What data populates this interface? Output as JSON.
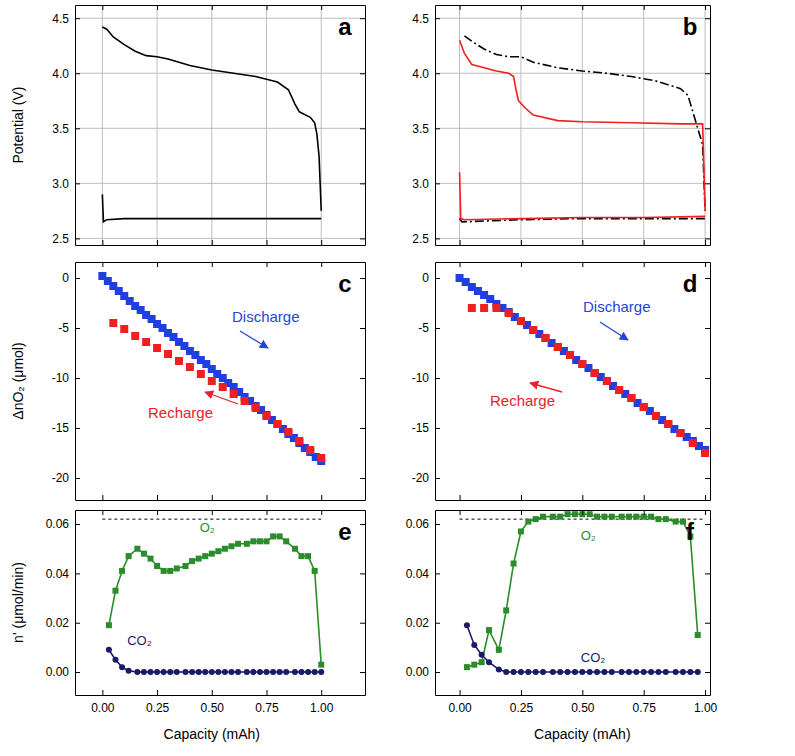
{
  "chart_data": [
    {
      "type": "line",
      "title": "a",
      "y_label": "Potential (V)",
      "xlim": [
        -0.125,
        1.2
      ],
      "ylim": [
        2.44,
        4.62
      ],
      "xticks": [
        0,
        0.25,
        0.5,
        0.75,
        1
      ],
      "yticks": [
        2.5,
        {
          "value": 3,
          "label": "3.0"
        },
        3.5,
        {
          "value": 4,
          "label": "4.0"
        },
        4.5
      ],
      "grid": true,
      "tick_labels": "y",
      "series": [
        {
          "color": "#000000",
          "line_style": "solid",
          "x": [
            0,
            0.02,
            0.05,
            0.1,
            0.15,
            0.2,
            0.25,
            0.3,
            0.4,
            0.5,
            0.6,
            0.7,
            0.8,
            0.85,
            0.88,
            0.9,
            0.93,
            0.95,
            0.97,
            0.98,
            0.99,
            1.0
          ],
          "values": [
            4.42,
            4.4,
            4.33,
            4.26,
            4.2,
            4.16,
            4.15,
            4.13,
            4.07,
            4.03,
            4.0,
            3.97,
            3.92,
            3.85,
            3.72,
            3.65,
            3.62,
            3.6,
            3.55,
            3.45,
            3.25,
            2.75
          ]
        },
        {
          "color": "#000000",
          "line_style": "solid",
          "x": [
            0,
            0.005,
            0.02,
            0.1,
            0.25,
            0.5,
            0.75,
            1.0
          ],
          "values": [
            2.9,
            2.65,
            2.67,
            2.68,
            2.68,
            2.68,
            2.68,
            2.68
          ]
        }
      ]
    },
    {
      "type": "line",
      "title": "b",
      "xlim": [
        -0.1,
        1.02
      ],
      "ylim": [
        2.44,
        4.62
      ],
      "xticks": [
        0,
        0.25,
        0.5,
        0.75,
        1
      ],
      "yticks": [
        2.5,
        {
          "value": 3,
          "label": "3.0"
        },
        3.5,
        {
          "value": 4,
          "label": "4.0"
        },
        4.5
      ],
      "grid": true,
      "tick_labels": "y",
      "series": [
        {
          "color": "#000000",
          "line_style": "dashdot",
          "x": [
            0.02,
            0.05,
            0.1,
            0.15,
            0.2,
            0.25,
            0.3,
            0.4,
            0.5,
            0.6,
            0.7,
            0.8,
            0.9,
            0.93,
            0.95,
            0.97,
            0.99,
            1.0
          ],
          "values": [
            4.34,
            4.29,
            4.22,
            4.17,
            4.15,
            4.15,
            4.1,
            4.05,
            4.02,
            4.0,
            3.97,
            3.93,
            3.86,
            3.8,
            3.65,
            3.5,
            3.35,
            2.75
          ]
        },
        {
          "color": "#000000",
          "line_style": "dashdot",
          "x": [
            0,
            0.01,
            0.25,
            0.5,
            0.75,
            1.0
          ],
          "values": [
            2.68,
            2.65,
            2.67,
            2.68,
            2.68,
            2.68
          ]
        },
        {
          "color": "#f02020",
          "line_style": "solid",
          "x": [
            0,
            0.02,
            0.05,
            0.1,
            0.15,
            0.2,
            0.22,
            0.23,
            0.24,
            0.27,
            0.3,
            0.4,
            0.5,
            0.7,
            0.9,
            0.99,
            1.0
          ],
          "values": [
            4.3,
            4.18,
            4.08,
            4.05,
            4.02,
            4.0,
            3.97,
            3.85,
            3.75,
            3.68,
            3.62,
            3.57,
            3.56,
            3.55,
            3.54,
            3.54,
            2.75
          ]
        },
        {
          "color": "#f02020",
          "line_style": "solid",
          "x": [
            0,
            0.005,
            0.02,
            0.25,
            0.5,
            0.75,
            1.0
          ],
          "values": [
            3.1,
            2.68,
            2.67,
            2.68,
            2.69,
            2.69,
            2.7
          ]
        }
      ]
    },
    {
      "type": "scatter",
      "title": "c",
      "y_label": "ΔnO₂ (μmol)",
      "xlim": [
        -0.125,
        1.2
      ],
      "ylim": [
        -22.2,
        1.6
      ],
      "xticks": [
        0,
        0.25,
        0.5,
        0.75,
        1
      ],
      "yticks": [
        0,
        -5,
        -10,
        -15,
        -20
      ],
      "grid": false,
      "tick_labels": "y",
      "series": [
        {
          "color": "#1f3fe0",
          "marker": "square",
          "line_style": "none",
          "x": [
            0,
            0.025,
            0.05,
            0.075,
            0.1,
            0.125,
            0.15,
            0.175,
            0.2,
            0.225,
            0.25,
            0.275,
            0.3,
            0.325,
            0.35,
            0.375,
            0.4,
            0.425,
            0.45,
            0.475,
            0.5,
            0.525,
            0.55,
            0.575,
            0.6,
            0.625,
            0.65,
            0.675,
            0.7,
            0.725,
            0.75,
            0.775,
            0.8,
            0.825,
            0.85,
            0.875,
            0.9,
            0.925,
            0.95,
            0.975,
            1
          ],
          "values": [
            0.2,
            -0.3,
            -0.8,
            -1.3,
            -1.8,
            -2.3,
            -2.8,
            -3.2,
            -3.7,
            -4.1,
            -4.6,
            -5.0,
            -5.5,
            -5.9,
            -6.4,
            -6.8,
            -7.3,
            -7.7,
            -8.2,
            -8.6,
            -9.1,
            -9.6,
            -10.0,
            -10.5,
            -10.9,
            -11.4,
            -11.9,
            -12.3,
            -12.8,
            -13.2,
            -13.7,
            -14.2,
            -14.6,
            -15.1,
            -15.6,
            -16.0,
            -16.5,
            -17.0,
            -17.4,
            -17.9,
            -18.3
          ]
        },
        {
          "color": "#f02020",
          "marker": "square",
          "line_style": "none",
          "x": [
            0.05,
            0.1,
            0.15,
            0.2,
            0.25,
            0.3,
            0.35,
            0.4,
            0.45,
            0.5,
            0.55,
            0.6,
            0.65,
            0.7,
            0.75,
            0.8,
            0.85,
            0.9,
            0.95,
            1.0
          ],
          "values": [
            -4.5,
            -5.1,
            -5.8,
            -6.4,
            -7.0,
            -7.6,
            -8.3,
            -8.9,
            -9.6,
            -10.3,
            -10.9,
            -11.6,
            -12.3,
            -13.0,
            -13.8,
            -14.6,
            -15.4,
            -16.3,
            -17.2,
            -18.0
          ]
        }
      ],
      "annotations": [
        {
          "text": "Discharge",
          "color": "#2446d8"
        },
        {
          "text": "Recharge",
          "color": "#e8222a"
        }
      ]
    },
    {
      "type": "scatter",
      "title": "d",
      "xlim": [
        -0.1,
        1.02
      ],
      "ylim": [
        -22.2,
        1.6
      ],
      "xticks": [
        0,
        0.25,
        0.5,
        0.75,
        1
      ],
      "yticks": [
        0,
        -5,
        -10,
        -15,
        -20
      ],
      "grid": false,
      "tick_labels": "y",
      "series": [
        {
          "color": "#1f3fe0",
          "marker": "square",
          "line_style": "none",
          "x": [
            0,
            0.025,
            0.05,
            0.075,
            0.1,
            0.125,
            0.15,
            0.175,
            0.2,
            0.225,
            0.25,
            0.275,
            0.3,
            0.325,
            0.35,
            0.375,
            0.4,
            0.425,
            0.45,
            0.475,
            0.5,
            0.525,
            0.55,
            0.575,
            0.6,
            0.625,
            0.65,
            0.675,
            0.7,
            0.725,
            0.75,
            0.775,
            0.8,
            0.825,
            0.85,
            0.875,
            0.9,
            0.925,
            0.95,
            0.975,
            1
          ],
          "values": [
            0,
            -0.4,
            -0.9,
            -1.3,
            -1.7,
            -2.1,
            -2.6,
            -3.0,
            -3.4,
            -3.9,
            -4.3,
            -4.7,
            -5.2,
            -5.6,
            -6.0,
            -6.5,
            -6.9,
            -7.3,
            -7.7,
            -8.2,
            -8.6,
            -9.0,
            -9.5,
            -9.9,
            -10.3,
            -10.8,
            -11.2,
            -11.6,
            -12.0,
            -12.5,
            -12.9,
            -13.3,
            -13.8,
            -14.2,
            -14.6,
            -15.1,
            -15.5,
            -15.9,
            -16.3,
            -16.8,
            -17.2
          ]
        },
        {
          "color": "#f02020",
          "marker": "square",
          "line_style": "none",
          "x": [
            0.05,
            0.1,
            0.15,
            0.2,
            0.25,
            0.3,
            0.35,
            0.4,
            0.45,
            0.5,
            0.55,
            0.6,
            0.65,
            0.7,
            0.75,
            0.8,
            0.85,
            0.9,
            0.95,
            1.0
          ],
          "values": [
            -3.0,
            -3.0,
            -3.0,
            -3.5,
            -4.3,
            -5.2,
            -6.0,
            -6.9,
            -7.7,
            -8.6,
            -9.5,
            -10.3,
            -11.2,
            -12.0,
            -12.9,
            -13.8,
            -14.6,
            -15.5,
            -16.5,
            -17.5
          ]
        }
      ],
      "annotations": [
        {
          "text": "Discharge",
          "color": "#2446d8"
        },
        {
          "text": "Recharge",
          "color": "#e8222a"
        }
      ]
    },
    {
      "type": "line",
      "title": "e",
      "x_label": "Capacity (mAh)",
      "y_label": "n' (μmol/min)",
      "xlim": [
        -0.125,
        1.2
      ],
      "ylim": [
        -0.0093,
        0.0657
      ],
      "xticks": [
        {
          "value": 0,
          "label": "0.00"
        },
        0.25,
        {
          "value": 0.5,
          "label": "0.50"
        },
        0.75,
        {
          "value": 1,
          "label": "1.00"
        }
      ],
      "yticks": [
        {
          "value": 0,
          "label": "0.00"
        },
        0.02,
        0.04,
        0.06
      ],
      "grid": false,
      "tick_labels": true,
      "hline": 0.062,
      "series": [
        {
          "name": "O₂",
          "color": "#2a8c2a",
          "marker": "square",
          "line_style": "solid",
          "x": [
            0.03,
            0.06,
            0.09,
            0.12,
            0.16,
            0.19,
            0.22,
            0.25,
            0.28,
            0.31,
            0.34,
            0.38,
            0.41,
            0.44,
            0.47,
            0.5,
            0.53,
            0.56,
            0.59,
            0.62,
            0.66,
            0.69,
            0.72,
            0.75,
            0.78,
            0.81,
            0.84,
            0.88,
            0.91,
            0.94,
            0.97,
            1.0
          ],
          "values": [
            0.019,
            0.033,
            0.041,
            0.047,
            0.05,
            0.048,
            0.046,
            0.043,
            0.041,
            0.041,
            0.042,
            0.043,
            0.045,
            0.046,
            0.047,
            0.048,
            0.049,
            0.05,
            0.051,
            0.052,
            0.052,
            0.053,
            0.053,
            0.053,
            0.055,
            0.055,
            0.053,
            0.05,
            0.047,
            0.047,
            0.041,
            0.003
          ]
        },
        {
          "name": "CO₂",
          "color": "#1a1a66",
          "marker": "circle",
          "line_style": "solid",
          "x": [
            0.03,
            0.06,
            0.09,
            0.12,
            0.16,
            0.19,
            0.22,
            0.25,
            0.28,
            0.31,
            0.34,
            0.38,
            0.41,
            0.44,
            0.47,
            0.5,
            0.53,
            0.56,
            0.59,
            0.62,
            0.66,
            0.69,
            0.72,
            0.75,
            0.78,
            0.81,
            0.84,
            0.88,
            0.91,
            0.94,
            0.97,
            1.0
          ],
          "values": [
            0.009,
            0.005,
            0.002,
            0.0005,
            0,
            0,
            0,
            0,
            0,
            0,
            0,
            0,
            0,
            0,
            0,
            0,
            0,
            0,
            0,
            0,
            0,
            0,
            0,
            0,
            0,
            0,
            0,
            0,
            0,
            0,
            0,
            0
          ]
        }
      ]
    },
    {
      "type": "line",
      "title": "f",
      "x_label": "Capacity (mAh)",
      "xlim": [
        -0.1,
        1.02
      ],
      "ylim": [
        -0.0093,
        0.0657
      ],
      "xticks": [
        {
          "value": 0,
          "label": "0.00"
        },
        0.25,
        {
          "value": 0.5,
          "label": "0.50"
        },
        0.75,
        {
          "value": 1,
          "label": "1.00"
        }
      ],
      "yticks": [
        {
          "value": 0,
          "label": "0.00"
        },
        0.02,
        0.04,
        0.06
      ],
      "grid": false,
      "tick_labels": true,
      "hline": 0.062,
      "series": [
        {
          "name": "O₂",
          "color": "#2a8c2a",
          "marker": "square",
          "line_style": "solid",
          "x": [
            0.03,
            0.06,
            0.09,
            0.12,
            0.16,
            0.19,
            0.22,
            0.25,
            0.28,
            0.31,
            0.34,
            0.38,
            0.41,
            0.44,
            0.47,
            0.5,
            0.53,
            0.56,
            0.59,
            0.62,
            0.66,
            0.69,
            0.72,
            0.75,
            0.78,
            0.81,
            0.84,
            0.88,
            0.91,
            0.94,
            0.97
          ],
          "values": [
            0.002,
            0.003,
            0.004,
            0.017,
            0.009,
            0.025,
            0.044,
            0.057,
            0.061,
            0.062,
            0.063,
            0.063,
            0.063,
            0.064,
            0.064,
            0.064,
            0.064,
            0.063,
            0.063,
            0.063,
            0.063,
            0.063,
            0.063,
            0.063,
            0.063,
            0.062,
            0.062,
            0.061,
            0.061,
            0.055,
            0.015
          ]
        },
        {
          "name": "CO₂",
          "color": "#1a1a66",
          "marker": "circle",
          "line_style": "solid",
          "x": [
            0.03,
            0.06,
            0.09,
            0.12,
            0.16,
            0.19,
            0.22,
            0.25,
            0.28,
            0.31,
            0.34,
            0.38,
            0.41,
            0.44,
            0.47,
            0.5,
            0.53,
            0.56,
            0.59,
            0.62,
            0.66,
            0.69,
            0.72,
            0.75,
            0.78,
            0.81,
            0.84,
            0.88,
            0.91,
            0.94,
            0.97
          ],
          "values": [
            0.019,
            0.011,
            0.007,
            0.004,
            0.001,
            0,
            0,
            0,
            0,
            0,
            0,
            0,
            0,
            0,
            0,
            0,
            0,
            0,
            0,
            0,
            0,
            0,
            0,
            0,
            0,
            0,
            0,
            0,
            0,
            0,
            0
          ]
        }
      ]
    }
  ]
}
